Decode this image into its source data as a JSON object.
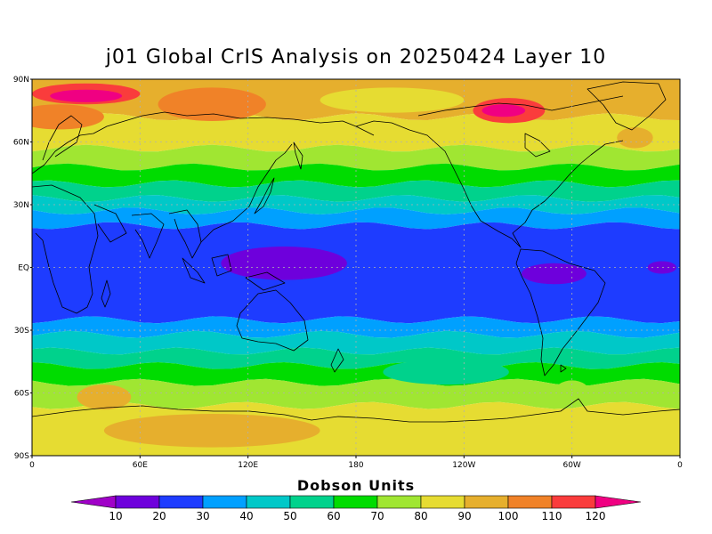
{
  "title": "j01 Global CrIS Analysis on 20250424 Layer 10",
  "colorbar": {
    "title": "Dobson Units",
    "ticks": [
      "10",
      "20",
      "30",
      "40",
      "50",
      "60",
      "70",
      "80",
      "90",
      "100",
      "110",
      "120"
    ],
    "colors": [
      "#a000c8",
      "#6e00dc",
      "#1e3cff",
      "#00a0ff",
      "#00c8c8",
      "#00d28c",
      "#00dc00",
      "#a0e632",
      "#e6dc32",
      "#e6af2d",
      "#f08228",
      "#fa3c3c",
      "#f00082"
    ]
  },
  "chart_data": {
    "type": "heatmap",
    "title": "j01 Global CrIS Analysis on 20250424 Layer 10",
    "quantity": "Dobson Units",
    "projection": "cylindrical equidistant",
    "x_range": [
      0,
      360
    ],
    "y_range": [
      -90,
      90
    ],
    "grid": true,
    "y_ticks": [
      "90N",
      "60N",
      "30N",
      "EQ",
      "30S",
      "60S",
      "90S"
    ],
    "x_ticks": [
      "0",
      "60E",
      "120E",
      "180",
      "120W",
      "60W",
      "0"
    ],
    "bands": [
      {
        "lat_from": 90,
        "lat_to": 72,
        "level": 90
      },
      {
        "lat_from": 72,
        "lat_to": 57,
        "level": 80
      },
      {
        "lat_from": 57,
        "lat_to": 48,
        "level": 70
      },
      {
        "lat_from": 48,
        "lat_to": 40,
        "level": 60
      },
      {
        "lat_from": 40,
        "lat_to": 33,
        "level": 50
      },
      {
        "lat_from": 33,
        "lat_to": 27,
        "level": 40
      },
      {
        "lat_from": 27,
        "lat_to": 20,
        "level": 30
      },
      {
        "lat_from": 20,
        "lat_to": -25,
        "level": 20
      },
      {
        "lat_from": -25,
        "lat_to": -32,
        "level": 30
      },
      {
        "lat_from": -32,
        "lat_to": -40,
        "level": 40
      },
      {
        "lat_from": -40,
        "lat_to": -47,
        "level": 50
      },
      {
        "lat_from": -47,
        "lat_to": -55,
        "level": 60
      },
      {
        "lat_from": -55,
        "lat_to": -66,
        "level": 70
      },
      {
        "lat_from": -66,
        "lat_to": -90,
        "level": 80
      }
    ],
    "features": [
      {
        "lon": 30,
        "lat": 83,
        "rx": 30,
        "ry": 5,
        "level": 110
      },
      {
        "lon": 30,
        "lat": 82,
        "rx": 20,
        "ry": 3,
        "level": 120
      },
      {
        "lon": 265,
        "lat": 75,
        "rx": 20,
        "ry": 6,
        "level": 110
      },
      {
        "lon": 262,
        "lat": 75,
        "rx": 12,
        "ry": 3,
        "level": 120
      },
      {
        "lon": 100,
        "lat": 78,
        "rx": 30,
        "ry": 8,
        "level": 100
      },
      {
        "lon": 15,
        "lat": 72,
        "rx": 25,
        "ry": 6,
        "level": 100
      },
      {
        "lon": 200,
        "lat": 80,
        "rx": 40,
        "ry": 6,
        "level": 80
      },
      {
        "lon": 335,
        "lat": 62,
        "rx": 10,
        "ry": 5,
        "level": 90
      },
      {
        "lon": 140,
        "lat": 2,
        "rx": 35,
        "ry": 8,
        "level": 10
      },
      {
        "lon": 290,
        "lat": -3,
        "rx": 18,
        "ry": 5,
        "level": 10
      },
      {
        "lon": 350,
        "lat": 0,
        "rx": 8,
        "ry": 3,
        "level": 10
      },
      {
        "lon": 230,
        "lat": -50,
        "rx": 35,
        "ry": 6,
        "level": 50
      },
      {
        "lon": 40,
        "lat": -62,
        "rx": 15,
        "ry": 6,
        "level": 90
      },
      {
        "lon": 100,
        "lat": -78,
        "rx": 60,
        "ry": 8,
        "level": 90
      },
      {
        "lon": 300,
        "lat": -60,
        "rx": 10,
        "ry": 6,
        "level": 70
      }
    ]
  }
}
